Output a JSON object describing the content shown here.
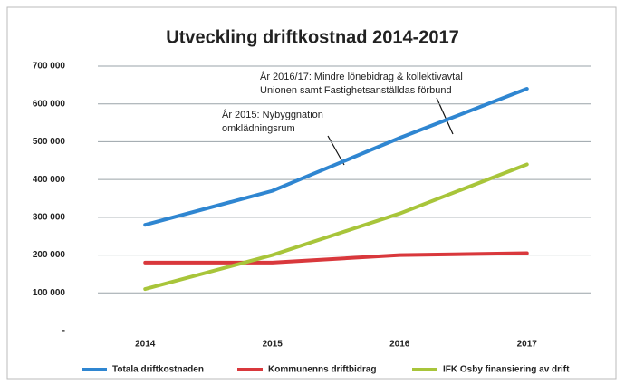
{
  "chart_data": {
    "type": "line",
    "title": "Utveckling driftkostnad 2014-2017",
    "categories": [
      "2014",
      "2015",
      "2016",
      "2017"
    ],
    "series": [
      {
        "name": "Totala driftkostnaden",
        "color": "#2f86d1",
        "values": [
          280000,
          370000,
          510000,
          640000
        ]
      },
      {
        "name": "Kommunenns driftbidrag",
        "color": "#d9383c",
        "values": [
          180000,
          180000,
          200000,
          205000
        ]
      },
      {
        "name": "IFK Osby finansiering av drift",
        "color": "#a8c53a",
        "values": [
          110000,
          200000,
          310000,
          440000
        ]
      }
    ],
    "ylim": [
      0,
      700000
    ],
    "yticks": [
      {
        "value": 0,
        "label": "-"
      },
      {
        "value": 100000,
        "label": "100 000"
      },
      {
        "value": 200000,
        "label": "200 000"
      },
      {
        "value": 300000,
        "label": "300 000"
      },
      {
        "value": 400000,
        "label": "400 000"
      },
      {
        "value": 500000,
        "label": "500 000"
      },
      {
        "value": 600000,
        "label": "600 000"
      },
      {
        "value": 700000,
        "label": "700 000"
      }
    ],
    "grid": true,
    "legend": "bottom",
    "annotations": [
      {
        "lines": [
          "År 2016/17: Mindre lönebidrag & kollektivavtal",
          "Unionen samt Fastighetsanställdas förbund"
        ]
      },
      {
        "lines": [
          "År 2015: Nybyggnation",
          "omklädningsrum"
        ]
      }
    ]
  }
}
